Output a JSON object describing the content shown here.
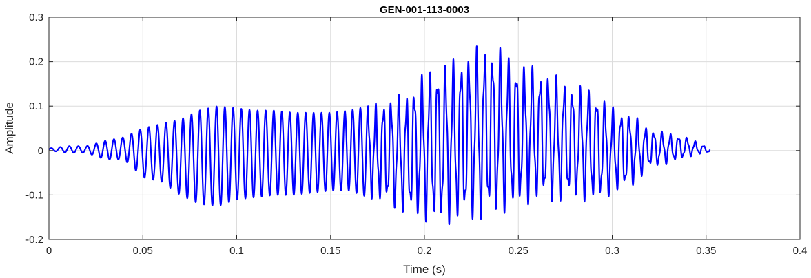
{
  "chart_data": {
    "type": "line",
    "title": "GEN-001-113-0003",
    "xlabel": "Time (s)",
    "ylabel": "Amplitude",
    "xlim": [
      0,
      0.4
    ],
    "ylim": [
      -0.2,
      0.3
    ],
    "grid": true,
    "x_ticks": [
      0,
      0.05,
      0.1,
      0.15,
      0.2,
      0.25,
      0.3,
      0.35,
      0.4
    ],
    "x_tick_labels": [
      "0",
      "0.05",
      "0.1",
      "0.15",
      "0.2",
      "0.25",
      "0.3",
      "0.35",
      "0.4"
    ],
    "y_ticks": [
      -0.2,
      -0.1,
      0,
      0.1,
      0.2,
      0.3
    ],
    "y_tick_labels": [
      "-0.2",
      "-0.1",
      "0",
      "0.1",
      "0.2",
      "0.3"
    ],
    "line_color": "#0000ff",
    "series": [
      {
        "x": [
          0,
          0.01,
          0.02,
          0.03,
          0.04,
          0.05,
          0.06,
          0.07,
          0.08,
          0.09,
          0.1,
          0.11,
          0.12,
          0.13,
          0.14,
          0.15,
          0.16,
          0.17,
          0.18,
          0.19,
          0.2,
          0.21,
          0.22,
          0.23,
          0.24,
          0.25,
          0.26,
          0.27,
          0.28,
          0.29,
          0.3,
          0.31,
          0.32,
          0.33,
          0.34,
          0.35
        ],
        "y_max": [
          0.005,
          0.01,
          0.01,
          0.022,
          0.03,
          0.05,
          0.06,
          0.07,
          0.09,
          0.1,
          0.095,
          0.09,
          0.09,
          0.085,
          0.085,
          0.085,
          0.09,
          0.1,
          0.12,
          0.13,
          0.18,
          0.2,
          0.215,
          0.24,
          0.235,
          0.2,
          0.19,
          0.17,
          0.15,
          0.14,
          0.1,
          0.085,
          0.05,
          0.04,
          0.03,
          0.01
        ],
        "y_min": [
          0,
          -0.005,
          -0.005,
          -0.02,
          -0.02,
          -0.06,
          -0.07,
          -0.1,
          -0.12,
          -0.125,
          -0.11,
          -0.105,
          -0.1,
          -0.1,
          -0.095,
          -0.09,
          -0.09,
          -0.105,
          -0.125,
          -0.145,
          -0.16,
          -0.17,
          -0.16,
          -0.16,
          -0.145,
          -0.13,
          -0.115,
          -0.12,
          -0.11,
          -0.12,
          -0.1,
          -0.085,
          -0.04,
          -0.03,
          -0.015,
          -0.005
        ]
      }
    ]
  }
}
